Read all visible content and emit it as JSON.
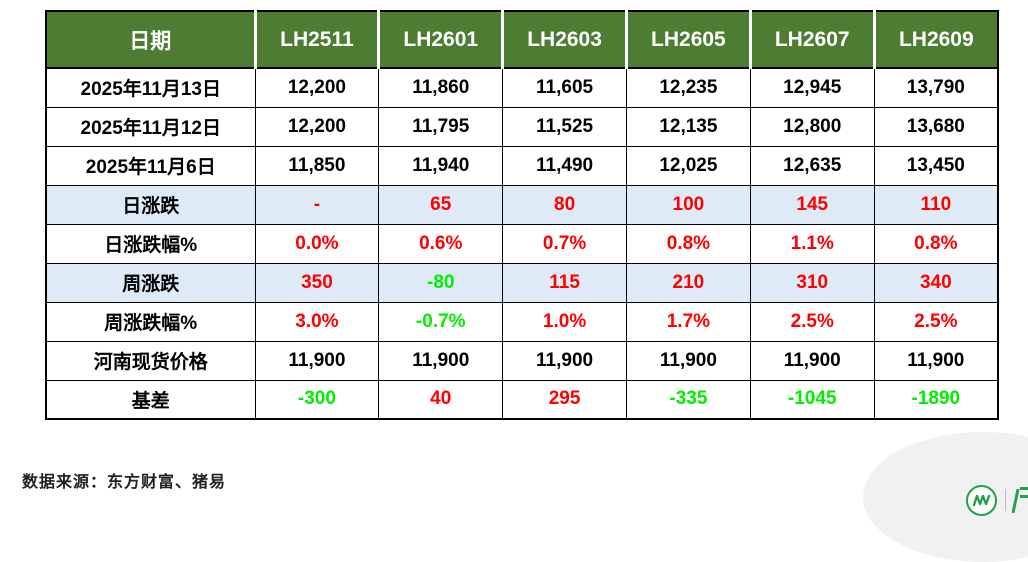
{
  "chart_data": {
    "type": "table",
    "title": "",
    "columns": [
      "日期",
      "LH2511",
      "LH2601",
      "LH2603",
      "LH2605",
      "LH2607",
      "LH2609"
    ],
    "rows": [
      [
        "2025年11月13日",
        "12,200",
        "11,860",
        "11,605",
        "12,235",
        "12,945",
        "13,790"
      ],
      [
        "2025年11月12日",
        "12,200",
        "11,795",
        "11,525",
        "12,135",
        "12,800",
        "13,680"
      ],
      [
        "2025年11月6日",
        "11,850",
        "11,940",
        "11,490",
        "12,025",
        "12,635",
        "13,450"
      ],
      [
        "日涨跌",
        "-",
        "65",
        "80",
        "100",
        "145",
        "110"
      ],
      [
        "日涨跌幅%",
        "0.0%",
        "0.6%",
        "0.7%",
        "0.8%",
        "1.1%",
        "0.8%"
      ],
      [
        "周涨跌",
        "350",
        "-80",
        "115",
        "210",
        "310",
        "340"
      ],
      [
        "周涨跌幅%",
        "3.0%",
        "-0.7%",
        "1.0%",
        "1.7%",
        "2.5%",
        "2.5%"
      ],
      [
        "河南现货价格",
        "11,900",
        "11,900",
        "11,900",
        "11,900",
        "11,900",
        "11,900"
      ],
      [
        "基差",
        "-300",
        "40",
        "295",
        "-335",
        "-1045",
        "-1890"
      ]
    ]
  },
  "table": {
    "header": {
      "date_label": "日期",
      "contracts": [
        "LH2511",
        "LH2601",
        "LH2603",
        "LH2605",
        "LH2607",
        "LH2609"
      ]
    },
    "rows": [
      {
        "label": "2025年11月13日",
        "bg": "white",
        "values": [
          "12,200",
          "11,860",
          "11,605",
          "12,235",
          "12,945",
          "13,790"
        ],
        "colors": [
          "black",
          "black",
          "black",
          "black",
          "black",
          "black"
        ]
      },
      {
        "label": "2025年11月12日",
        "bg": "white",
        "values": [
          "12,200",
          "11,795",
          "11,525",
          "12,135",
          "12,800",
          "13,680"
        ],
        "colors": [
          "black",
          "black",
          "black",
          "black",
          "black",
          "black"
        ]
      },
      {
        "label": "2025年11月6日",
        "bg": "white",
        "values": [
          "11,850",
          "11,940",
          "11,490",
          "12,025",
          "12,635",
          "13,450"
        ],
        "colors": [
          "black",
          "black",
          "black",
          "black",
          "black",
          "black"
        ]
      },
      {
        "label": "日涨跌",
        "bg": "blue",
        "values": [
          "-",
          "65",
          "80",
          "100",
          "145",
          "110"
        ],
        "colors": [
          "red",
          "red",
          "red",
          "red",
          "red",
          "red"
        ]
      },
      {
        "label": "日涨跌幅%",
        "bg": "white",
        "values": [
          "0.0%",
          "0.6%",
          "0.7%",
          "0.8%",
          "1.1%",
          "0.8%"
        ],
        "colors": [
          "red",
          "red",
          "red",
          "red",
          "red",
          "red"
        ]
      },
      {
        "label": "周涨跌",
        "bg": "blue",
        "values": [
          "350",
          "-80",
          "115",
          "210",
          "310",
          "340"
        ],
        "colors": [
          "red",
          "green",
          "red",
          "red",
          "red",
          "red"
        ]
      },
      {
        "label": "周涨跌幅%",
        "bg": "white",
        "values": [
          "3.0%",
          "-0.7%",
          "1.0%",
          "1.7%",
          "2.5%",
          "2.5%"
        ],
        "colors": [
          "red",
          "green",
          "red",
          "red",
          "red",
          "red"
        ]
      },
      {
        "label": "河南现货价格",
        "bg": "white",
        "values": [
          "11,900",
          "11,900",
          "11,900",
          "11,900",
          "11,900",
          "11,900"
        ],
        "colors": [
          "black",
          "black",
          "black",
          "black",
          "black",
          "black"
        ]
      },
      {
        "label": "基差",
        "bg": "white",
        "values": [
          "-300",
          "40",
          "295",
          "-335",
          "-1045",
          "-1890"
        ],
        "colors": [
          "green",
          "red",
          "red",
          "green",
          "green",
          "green"
        ]
      }
    ]
  },
  "footer": {
    "source_text": "数据来源：东方财富、猪易"
  },
  "logo": {
    "icon": "m-zigzag-circle-logo",
    "accent_color": "#1FA24A"
  },
  "colors": {
    "header_bg": "#4F7C33",
    "header_text": "#FFFFFF",
    "alt_row_bg": "#DEEBF7",
    "up_red": "#FF0000",
    "down_green": "#00EE00",
    "border": "#000000"
  }
}
